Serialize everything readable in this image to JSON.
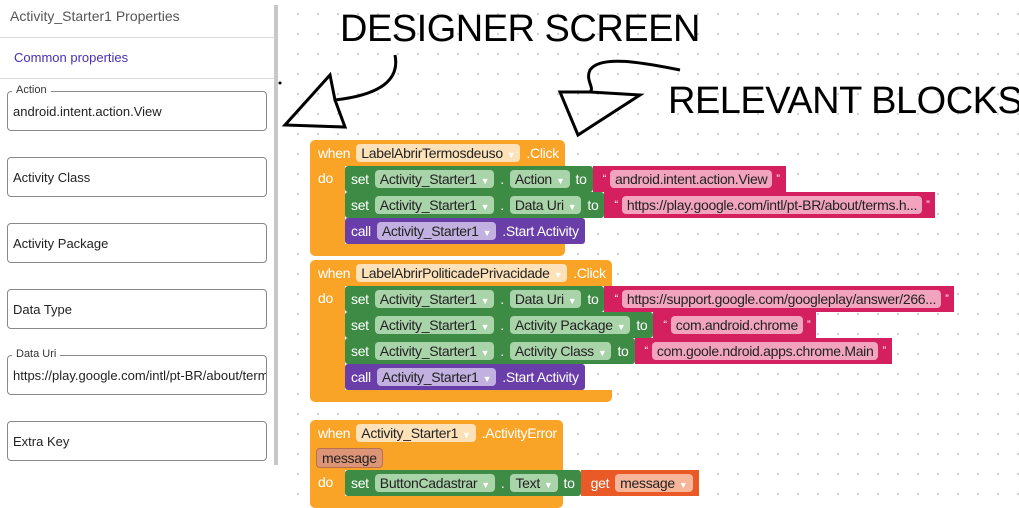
{
  "panel": {
    "title": "Activity_Starter1 Properties",
    "section": "Common properties",
    "fields": [
      {
        "label": "Action",
        "value": "android.intent.action.View"
      },
      {
        "label": "",
        "value": "Activity Class"
      },
      {
        "label": "",
        "value": "Activity Package"
      },
      {
        "label": "",
        "value": "Data Type"
      },
      {
        "label": "Data Uri",
        "value": "https://play.google.com/intl/pt-BR/about/terms.html"
      },
      {
        "label": "",
        "value": "Extra Key"
      }
    ]
  },
  "annotations": {
    "designer": "DESIGNER SCREEN",
    "blocks": "RELEVANT BLOCKS"
  },
  "colors": {
    "event": "#f9a427",
    "set": "#3d8b45",
    "call": "#6a3ea8",
    "text": "#d4205f",
    "get": "#ea5a26"
  },
  "events": [
    {
      "when": "when",
      "component": "LabelAbrirTermosdeuso",
      "event": ".Click",
      "do": "do",
      "statements": [
        {
          "type": "set",
          "keyword": "set",
          "component": "Activity_Starter1",
          "dot": ".",
          "property": "Action",
          "to": "to",
          "value": {
            "type": "text",
            "text": "android.intent.action.View"
          }
        },
        {
          "type": "set",
          "keyword": "set",
          "component": "Activity_Starter1",
          "dot": ".",
          "property": "Data Uri",
          "to": "to",
          "value": {
            "type": "text",
            "text": "https://play.google.com/intl/pt-BR/about/terms.h..."
          }
        },
        {
          "type": "call",
          "keyword": "call",
          "component": "Activity_Starter1",
          "method": ".Start Activity"
        }
      ]
    },
    {
      "when": "when",
      "component": "LabelAbrirPoliticadePrivacidade",
      "event": ".Click",
      "do": "do",
      "statements": [
        {
          "type": "set",
          "keyword": "set",
          "component": "Activity_Starter1",
          "dot": ".",
          "property": "Data Uri",
          "to": "to",
          "value": {
            "type": "text",
            "text": "https://support.google.com/googleplay/answer/266..."
          }
        },
        {
          "type": "set",
          "keyword": "set",
          "component": "Activity_Starter1",
          "dot": ".",
          "property": "Activity Package",
          "to": "to",
          "value": {
            "type": "text",
            "text": "com.android.chrome"
          }
        },
        {
          "type": "set",
          "keyword": "set",
          "component": "Activity_Starter1",
          "dot": ".",
          "property": "Activity Class",
          "to": "to",
          "value": {
            "type": "text",
            "text": "com.goole.ndroid.apps.chrome.Main"
          }
        },
        {
          "type": "call",
          "keyword": "call",
          "component": "Activity_Starter1",
          "method": ".Start Activity"
        }
      ]
    },
    {
      "when": "when",
      "component": "Activity_Starter1",
      "event": ".ActivityError",
      "param": "message",
      "do": "do",
      "statements": [
        {
          "type": "set",
          "keyword": "set",
          "component": "ButtonCadastrar",
          "dot": ".",
          "property": "Text",
          "to": "to",
          "value": {
            "type": "get",
            "keyword": "get",
            "text": "message"
          }
        }
      ]
    }
  ]
}
